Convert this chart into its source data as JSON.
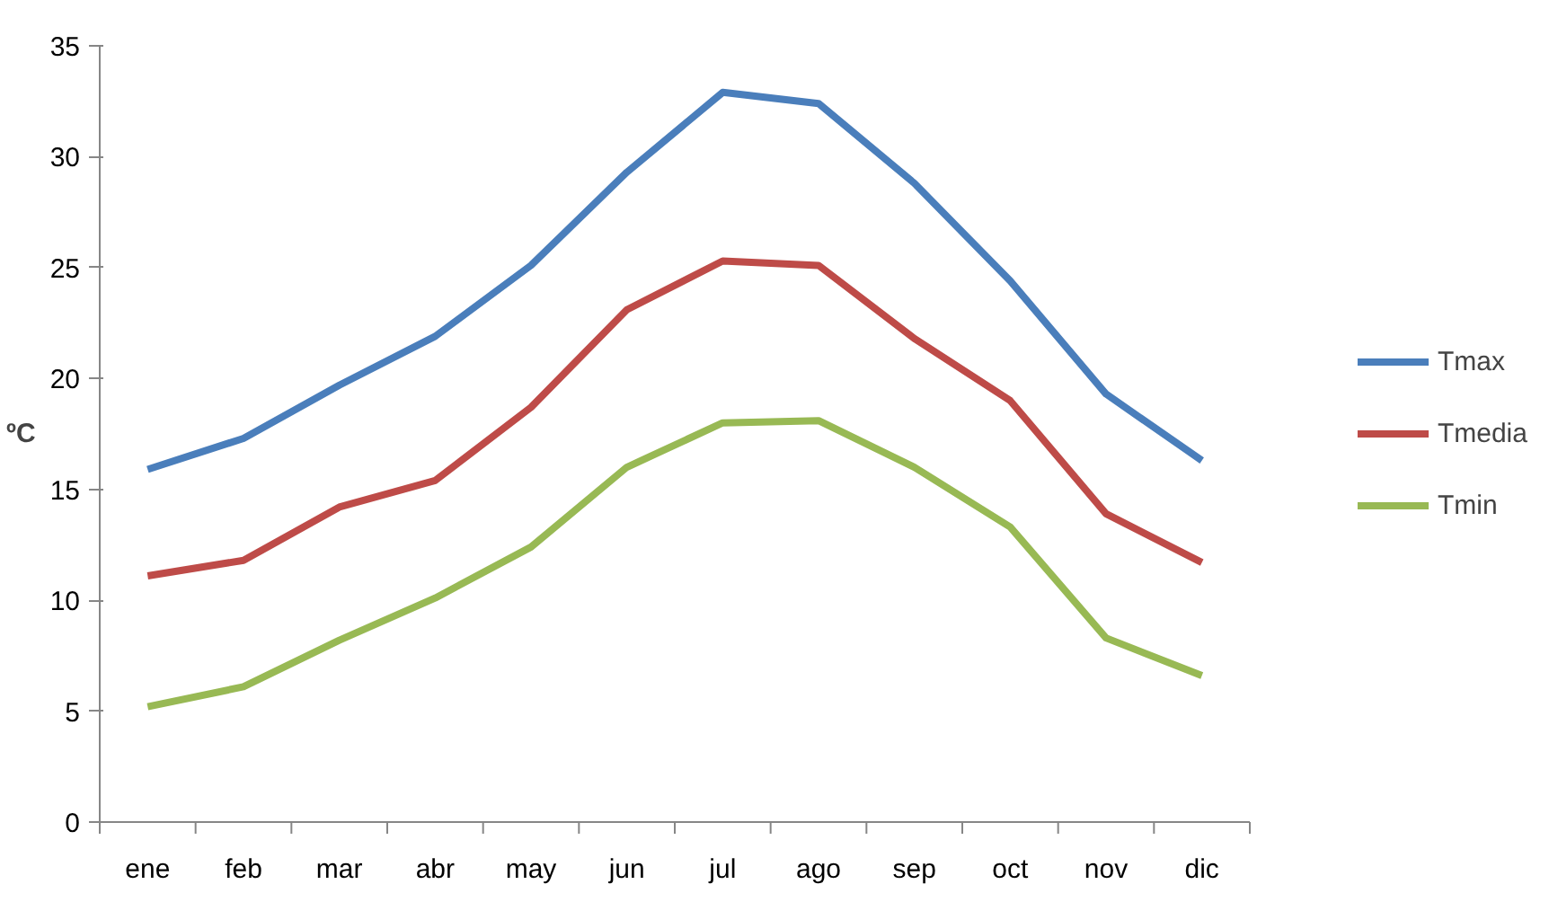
{
  "chart_data": {
    "type": "line",
    "ylabel": "ºC",
    "categories": [
      "ene",
      "feb",
      "mar",
      "abr",
      "may",
      "jun",
      "jul",
      "ago",
      "sep",
      "oct",
      "nov",
      "dic"
    ],
    "series": [
      {
        "name": "Tmax",
        "color": "#4a7ebb",
        "values": [
          15.9,
          17.3,
          19.7,
          21.9,
          25.1,
          29.3,
          32.9,
          32.4,
          28.8,
          24.4,
          19.3,
          16.3
        ]
      },
      {
        "name": "Tmedia",
        "color": "#be4b48",
        "values": [
          11.1,
          11.8,
          14.2,
          15.4,
          18.7,
          23.1,
          25.3,
          25.1,
          21.8,
          19.0,
          13.9,
          11.7
        ]
      },
      {
        "name": "Tmin",
        "color": "#98b954",
        "values": [
          5.2,
          6.1,
          8.2,
          10.1,
          12.4,
          16.0,
          18.0,
          18.1,
          16.0,
          13.3,
          8.3,
          6.6
        ]
      }
    ],
    "ylim": [
      0,
      35
    ],
    "yticks": [
      0,
      5,
      10,
      15,
      20,
      25,
      30,
      35
    ],
    "grid": false,
    "legend": "right",
    "marker": "none",
    "line_style": "solid"
  }
}
